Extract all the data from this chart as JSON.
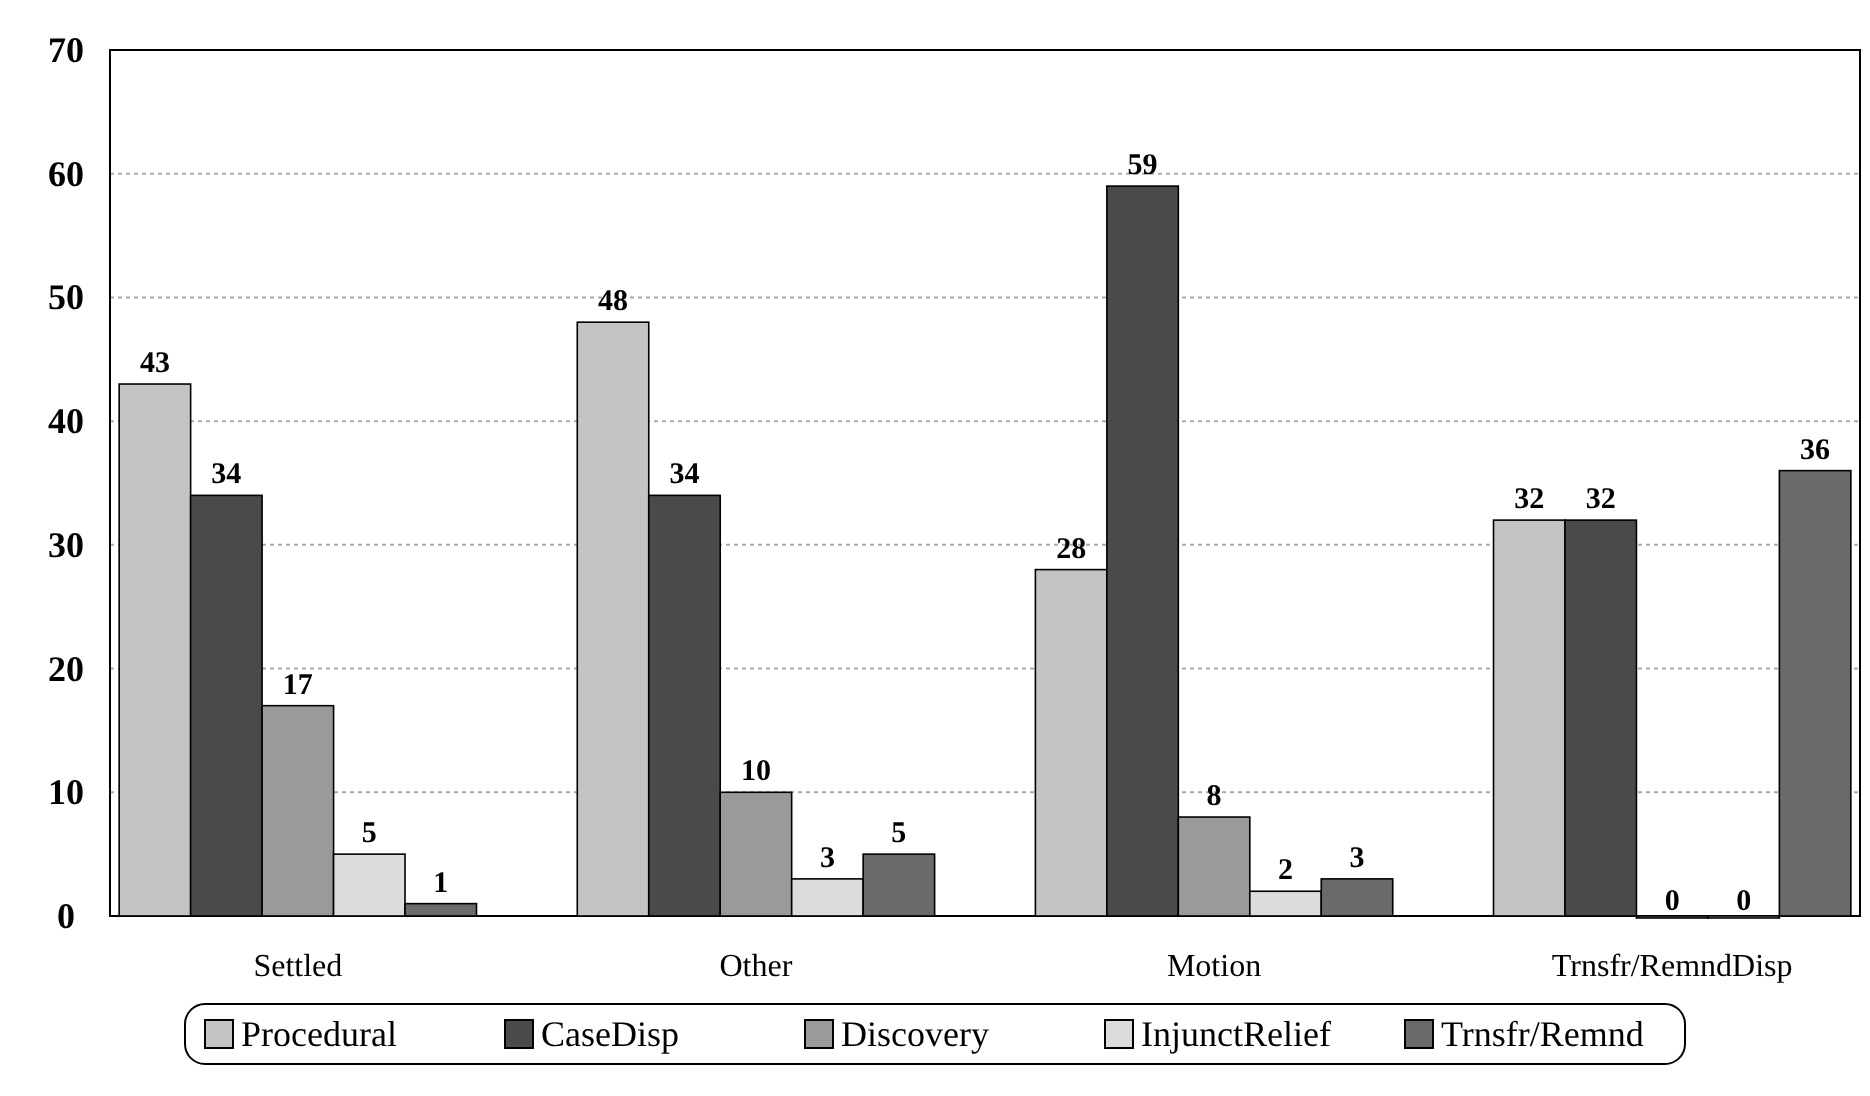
{
  "chart_data": {
    "type": "bar",
    "categories": [
      "Settled",
      "Other",
      "Motion",
      "Trnsfr/RemndDisp"
    ],
    "series": [
      {
        "name": "Procedural",
        "color": "#c4c4c4",
        "values": [
          43,
          48,
          28,
          32
        ]
      },
      {
        "name": "CaseDisp",
        "color": "#4a4a4a",
        "values": [
          34,
          34,
          59,
          32
        ]
      },
      {
        "name": "Discovery",
        "color": "#9a9a9a",
        "values": [
          17,
          10,
          8,
          0
        ]
      },
      {
        "name": "InjunctRelief",
        "color": "#dcdcdc",
        "values": [
          5,
          3,
          2,
          0
        ]
      },
      {
        "name": "Trnsfr/Remnd",
        "color": "#6a6a6a",
        "values": [
          1,
          5,
          3,
          36
        ]
      }
    ],
    "ylim": [
      0,
      70
    ],
    "yticks": [
      0,
      10,
      20,
      30,
      40,
      50,
      60,
      70
    ],
    "grid": "y",
    "legend": "bottom",
    "data_labels": true
  }
}
